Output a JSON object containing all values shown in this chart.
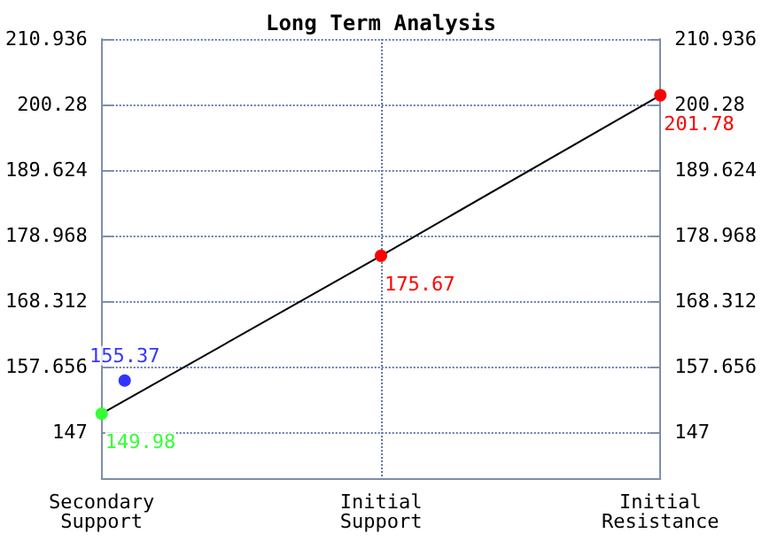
{
  "chart_data": {
    "type": "line",
    "title": "Long Term Analysis",
    "categories": [
      "Secondary\nSupport",
      "Initial\nSupport",
      "Initial\nResistance"
    ],
    "series": [
      {
        "color": "#000000",
        "colors": [
          "#33ff33",
          "#ff0000",
          "#ff0000"
        ],
        "values": [
          149.98,
          175.67,
          201.78
        ]
      },
      {
        "type": "scatter",
        "color": "#0000ff",
        "x": [
          "Secondary\nSupport"
        ],
        "values": [
          155.37
        ]
      }
    ],
    "data_labels": true,
    "marker": "circle",
    "grid": true,
    "ylim": [
      139.5,
      210.936
    ],
    "yticks": [
      147,
      157.656,
      168.312,
      178.968,
      189.624,
      200.28,
      210.936
    ],
    "y2lim": [
      139.5,
      210.936
    ],
    "y2ticks": [
      147,
      157.656,
      168.312,
      178.968,
      189.624,
      200.28,
      210.936
    ]
  }
}
